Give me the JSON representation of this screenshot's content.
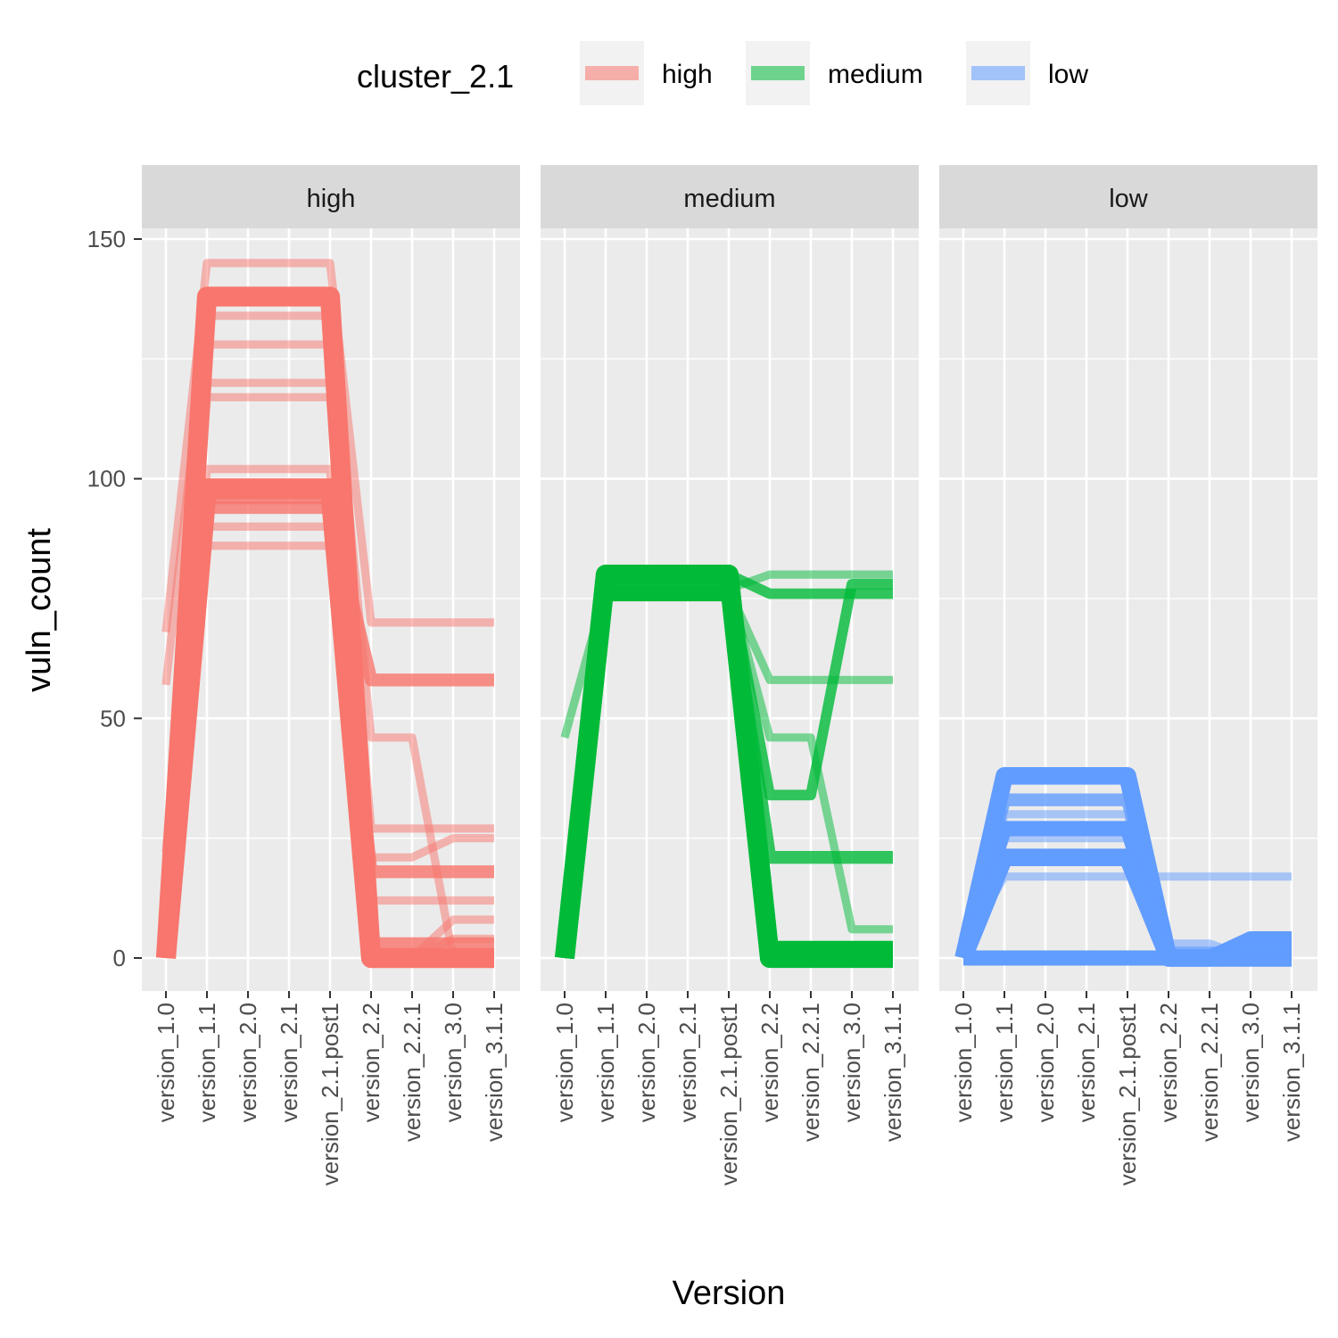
{
  "chart_data": {
    "type": "line",
    "xlabel": "Version",
    "ylabel": "vuln_count",
    "ylim": [
      -7,
      164
    ],
    "y_ticks": [
      0,
      50,
      100,
      150
    ],
    "categories": [
      "version_1.0",
      "version_1.1",
      "version_2.0",
      "version_2.1",
      "version_2.1.post1",
      "version_2.2",
      "version_2.2.1",
      "version_3.0",
      "version_3.1.1"
    ],
    "legend": {
      "title": "cluster_2.1",
      "position": "top",
      "entries": [
        {
          "label": "high",
          "color": "#F8766D"
        },
        {
          "label": "medium",
          "color": "#00BA38"
        },
        {
          "label": "low",
          "color": "#619CFF"
        }
      ]
    },
    "panels": [
      {
        "strip": "high",
        "color": "#F8766D",
        "series": [
          {
            "values": [
              0,
              138,
              138,
              138,
              138,
              0,
              0,
              0,
              0
            ],
            "weight": 7
          },
          {
            "values": [
              0,
              98,
              98,
              98,
              98,
              0,
              0,
              0,
              0
            ],
            "weight": 7
          },
          {
            "values": [
              0,
              94,
              94,
              94,
              94,
              58,
              58,
              58,
              58
            ],
            "weight": 4
          },
          {
            "values": [
              0,
              96,
              96,
              96,
              96,
              18,
              18,
              18,
              18
            ],
            "weight": 4
          },
          {
            "values": [
              0,
              97,
              97,
              97,
              97,
              3,
              3,
              3,
              3
            ],
            "weight": 4
          },
          {
            "values": [
              68,
              145,
              145,
              145,
              145,
              70,
              70,
              70,
              70
            ],
            "weight": 2
          },
          {
            "values": [
              57,
              134,
              134,
              134,
              134,
              46,
              46,
              0,
              0
            ],
            "weight": 2
          },
          {
            "values": [
              22,
              128,
              128,
              128,
              128,
              27,
              27,
              27,
              27
            ],
            "weight": 2
          },
          {
            "values": [
              8,
              120,
              120,
              120,
              120,
              21,
              21,
              25,
              25
            ],
            "weight": 2
          },
          {
            "values": [
              0,
              117,
              117,
              117,
              117,
              12,
              12,
              12,
              12
            ],
            "weight": 2
          },
          {
            "values": [
              0,
              102,
              102,
              102,
              102,
              0,
              0,
              8,
              8
            ],
            "weight": 2
          },
          {
            "values": [
              0,
              90,
              90,
              90,
              90,
              0,
              0,
              0,
              0
            ],
            "weight": 2
          },
          {
            "values": [
              0,
              86,
              86,
              86,
              86,
              0,
              0,
              4,
              4
            ],
            "weight": 2
          }
        ]
      },
      {
        "strip": "medium",
        "color": "#00BA38",
        "series": [
          {
            "values": [
              0,
              80,
              80,
              80,
              80,
              0,
              0,
              0,
              0
            ],
            "weight": 7
          },
          {
            "values": [
              0,
              76,
              76,
              76,
              76,
              2,
              2,
              2,
              2
            ],
            "weight": 5
          },
          {
            "values": [
              0,
              78,
              78,
              78,
              78,
              21,
              21,
              21,
              21
            ],
            "weight": 4
          },
          {
            "values": [
              0,
              79,
              79,
              79,
              79,
              34,
              34,
              78,
              78
            ],
            "weight": 3
          },
          {
            "values": [
              0,
              80,
              80,
              80,
              80,
              76,
              76,
              76,
              76
            ],
            "weight": 3
          },
          {
            "values": [
              46,
              77,
              77,
              77,
              77,
              80,
              80,
              80,
              80
            ],
            "weight": 2
          },
          {
            "values": [
              0,
              77,
              77,
              77,
              77,
              58,
              58,
              58,
              58
            ],
            "weight": 2
          },
          {
            "values": [
              0,
              78,
              78,
              78,
              78,
              46,
              46,
              6,
              6
            ],
            "weight": 2
          }
        ]
      },
      {
        "strip": "low",
        "color": "#619CFF",
        "series": [
          {
            "values": [
              0,
              38,
              38,
              38,
              38,
              0,
              0,
              0,
              0
            ],
            "weight": 6
          },
          {
            "values": [
              0,
              21,
              21,
              21,
              21,
              0,
              0,
              2,
              2
            ],
            "weight": 6
          },
          {
            "values": [
              0,
              27,
              27,
              27,
              27,
              0,
              0,
              4,
              4
            ],
            "weight": 5
          },
          {
            "values": [
              0,
              33,
              33,
              33,
              33,
              1,
              1,
              1,
              1
            ],
            "weight": 4
          },
          {
            "values": [
              0,
              0,
              0,
              0,
              0,
              0,
              0,
              3,
              3
            ],
            "weight": 5
          },
          {
            "values": [
              2,
              17,
              17,
              17,
              17,
              17,
              17,
              17,
              17
            ],
            "weight": 2
          },
          {
            "values": [
              0,
              25,
              25,
              25,
              25,
              3,
              3,
              0,
              0
            ],
            "weight": 2
          },
          {
            "values": [
              0,
              30,
              30,
              30,
              30,
              0,
              0,
              0,
              0
            ],
            "weight": 2
          }
        ]
      }
    ]
  }
}
